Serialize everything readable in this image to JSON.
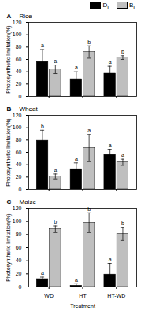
{
  "chart_data": [
    {
      "type": "bar",
      "panel_label": "A",
      "title": "Rice",
      "y_label": "Photosynthetic limitation(%)",
      "categories": [
        "WD",
        "HT",
        "HT-WD"
      ],
      "series": [
        {
          "name": "DL",
          "color": "#000000",
          "values": [
            56,
            28,
            37
          ],
          "errors": [
            20,
            12,
            12
          ],
          "letters": [
            "a",
            "a",
            "a"
          ]
        },
        {
          "name": "BL",
          "color": "#bfbfbf",
          "values": [
            44,
            72,
            63
          ],
          "errors": [
            7,
            10,
            3
          ],
          "letters": [
            "a",
            "b",
            "b"
          ]
        }
      ],
      "ylim": [
        0,
        120
      ],
      "yticks": [
        0,
        20,
        40,
        60,
        80,
        100,
        120
      ],
      "legend": "top",
      "tick_labels": "y"
    },
    {
      "type": "bar",
      "panel_label": "B",
      "title": "Wheat",
      "y_label": "Photosynthetic limitation(%)",
      "categories": [
        "WD",
        "HT",
        "HT-WD"
      ],
      "series": [
        {
          "name": "DL",
          "color": "#000000",
          "values": [
            79,
            33,
            56
          ],
          "errors": [
            17,
            10,
            9
          ],
          "letters": [
            "b",
            "a",
            "a"
          ]
        },
        {
          "name": "BL",
          "color": "#bfbfbf",
          "values": [
            21,
            67,
            44
          ],
          "errors": [
            4,
            22,
            5
          ],
          "letters": [
            "a",
            "a",
            "a"
          ]
        }
      ],
      "ylim": [
        0,
        120
      ],
      "yticks": [
        0,
        20,
        40,
        60,
        80,
        100,
        120
      ],
      "tick_labels": "y"
    },
    {
      "type": "bar",
      "panel_label": "C",
      "title": "Maize",
      "y_label": "Photosynthetic limitation(%)",
      "x_label": "Treatment",
      "categories": [
        "WD",
        "HT",
        "HT-WD"
      ],
      "series": [
        {
          "name": "DL",
          "color": "#000000",
          "values": [
            12,
            2,
            19
          ],
          "errors": [
            3,
            3,
            17
          ],
          "letters": [
            "a",
            "a",
            "a"
          ]
        },
        {
          "name": "BL",
          "color": "#bfbfbf",
          "values": [
            88,
            98,
            81
          ],
          "errors": [
            5,
            15,
            10
          ],
          "letters": [
            "b",
            "b",
            "b"
          ]
        }
      ],
      "ylim": [
        0,
        120
      ],
      "yticks": [
        0,
        20,
        40,
        60,
        80,
        100,
        120
      ]
    }
  ]
}
